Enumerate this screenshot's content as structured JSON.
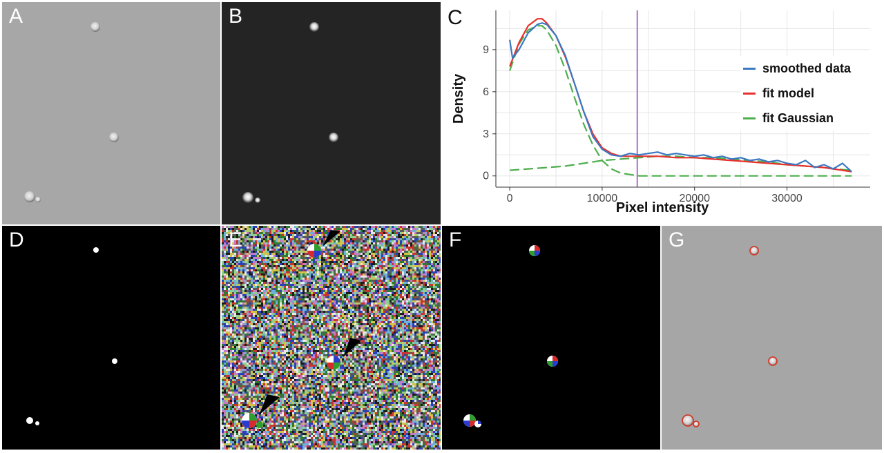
{
  "figure": {
    "panel_labels": [
      "A",
      "B",
      "C",
      "D",
      "E",
      "F",
      "G"
    ]
  },
  "colors": {
    "smoothed": "#3a78c2",
    "fit_model": "#e8302d",
    "fit_gaussian": "#4cae4c",
    "threshold": "#b36ac8",
    "contour": "#d23a2a"
  },
  "chart_data": {
    "type": "line",
    "title": "",
    "xlabel": "Pixel intensity",
    "ylabel": "Density",
    "xlim": [
      -1500,
      39000
    ],
    "ylim": [
      -0.8,
      11.8
    ],
    "xticks": [
      0,
      10000,
      20000,
      30000
    ],
    "xtick_labels": [
      "0",
      "10000",
      "20000",
      "30000"
    ],
    "yticks": [
      0,
      3,
      6,
      9
    ],
    "ytick_labels": [
      "0",
      "3",
      "6",
      "9"
    ],
    "grid": true,
    "legend_position": "right",
    "threshold_x": 13800,
    "series": [
      {
        "name": "smoothed data",
        "color": "#3a78c2",
        "style": "solid",
        "x": [
          0,
          300,
          1000,
          2000,
          3000,
          3500,
          4000,
          5000,
          6000,
          7000,
          8000,
          9000,
          10000,
          11000,
          12000,
          13000,
          14000,
          15000,
          16000,
          17000,
          18000,
          19000,
          20000,
          21000,
          22000,
          23000,
          24000,
          25000,
          26000,
          27000,
          28000,
          29000,
          30000,
          31000,
          32000,
          33000,
          34000,
          35000,
          36000,
          37000
        ],
        "y": [
          9.7,
          8.4,
          9.0,
          10.2,
          10.8,
          10.9,
          10.8,
          10.0,
          8.6,
          6.6,
          4.6,
          2.8,
          1.9,
          1.5,
          1.4,
          1.6,
          1.5,
          1.6,
          1.7,
          1.5,
          1.6,
          1.5,
          1.4,
          1.5,
          1.3,
          1.4,
          1.2,
          1.3,
          1.1,
          1.2,
          1.0,
          1.1,
          0.9,
          0.8,
          1.1,
          0.6,
          0.8,
          0.5,
          0.9,
          0.3
        ]
      },
      {
        "name": "fit model",
        "color": "#e8302d",
        "style": "solid",
        "x": [
          0,
          1000,
          2000,
          3000,
          3500,
          4000,
          5000,
          6000,
          7000,
          8000,
          9000,
          10000,
          11000,
          12000,
          13000,
          14000,
          16000,
          18000,
          20000,
          22000,
          24000,
          26000,
          28000,
          30000,
          32000,
          34000,
          36000,
          37000
        ],
        "y": [
          7.8,
          9.5,
          10.7,
          11.2,
          11.2,
          10.9,
          10.0,
          8.5,
          6.6,
          4.6,
          3.0,
          2.0,
          1.6,
          1.4,
          1.4,
          1.4,
          1.4,
          1.3,
          1.3,
          1.2,
          1.1,
          1.0,
          0.9,
          0.8,
          0.7,
          0.6,
          0.4,
          0.3
        ]
      },
      {
        "name": "fit Gaussian",
        "color": "#4cae4c",
        "style": "dashed",
        "x": [
          0,
          1000,
          2000,
          3000,
          3500,
          4000,
          5000,
          6000,
          7000,
          8000,
          9000,
          10000,
          11000,
          12000,
          13000,
          14000,
          16000,
          20000,
          25000,
          30000,
          37000
        ],
        "y": [
          7.5,
          9.4,
          10.4,
          10.7,
          10.7,
          10.4,
          9.3,
          7.6,
          5.6,
          3.7,
          2.2,
          1.1,
          0.5,
          0.2,
          0.1,
          0.0,
          0.0,
          0.0,
          0.0,
          0.0,
          0.0
        ]
      },
      {
        "name": "",
        "color": "#4cae4c",
        "style": "dashed",
        "x": [
          0,
          2000,
          4000,
          6000,
          8000,
          10000,
          12000,
          14000,
          16000,
          18000,
          20000,
          22000,
          24000,
          26000,
          28000,
          30000,
          32000,
          34000,
          36000,
          37000
        ],
        "y": [
          0.4,
          0.5,
          0.6,
          0.7,
          0.9,
          1.1,
          1.2,
          1.3,
          1.4,
          1.4,
          1.3,
          1.3,
          1.2,
          1.1,
          1.0,
          0.8,
          0.7,
          0.6,
          0.45,
          0.4
        ]
      }
    ]
  }
}
